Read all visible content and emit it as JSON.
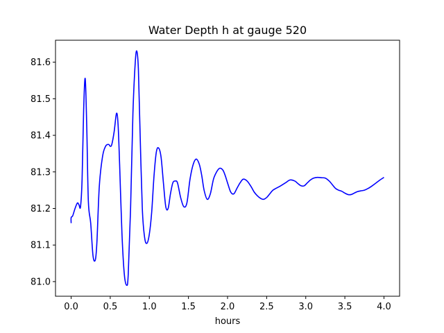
{
  "chart_data": {
    "type": "line",
    "title": "Water Depth h at gauge 520",
    "xlabel": "hours",
    "ylabel": "",
    "xlim": [
      -0.2,
      4.2
    ],
    "ylim": [
      80.96,
      81.66
    ],
    "grid": false,
    "legend": "none",
    "xticks": [
      0.0,
      0.5,
      1.0,
      1.5,
      2.0,
      2.5,
      3.0,
      3.5,
      4.0
    ],
    "xtick_labels": [
      "0.0",
      "0.5",
      "1.0",
      "1.5",
      "2.0",
      "2.5",
      "3.0",
      "3.5",
      "4.0"
    ],
    "yticks": [
      81.0,
      81.1,
      81.2,
      81.3,
      81.4,
      81.5,
      81.6
    ],
    "ytick_labels": [
      "81.0",
      "81.1",
      "81.2",
      "81.3",
      "81.4",
      "81.5",
      "81.6"
    ],
    "series": [
      {
        "color": "#0000ff",
        "x": [
          0.0,
          0.0,
          0.02,
          0.05,
          0.08,
          0.1,
          0.12,
          0.14,
          0.16,
          0.18,
          0.2,
          0.22,
          0.25,
          0.28,
          0.31,
          0.33,
          0.36,
          0.4,
          0.44,
          0.48,
          0.5,
          0.52,
          0.55,
          0.58,
          0.6,
          0.62,
          0.65,
          0.68,
          0.71,
          0.73,
          0.76,
          0.79,
          0.82,
          0.84,
          0.86,
          0.88,
          0.91,
          0.94,
          0.97,
          1.0,
          1.03,
          1.06,
          1.09,
          1.12,
          1.15,
          1.18,
          1.21,
          1.24,
          1.27,
          1.3,
          1.33,
          1.36,
          1.4,
          1.44,
          1.48,
          1.52,
          1.56,
          1.6,
          1.64,
          1.67,
          1.7,
          1.74,
          1.78,
          1.82,
          1.86,
          1.9,
          1.94,
          1.97,
          2.0,
          2.04,
          2.08,
          2.12,
          2.16,
          2.2,
          2.25,
          2.3,
          2.34,
          2.38,
          2.42,
          2.46,
          2.5,
          2.54,
          2.58,
          2.62,
          2.68,
          2.74,
          2.8,
          2.86,
          2.9,
          2.94,
          2.98,
          3.02,
          3.06,
          3.1,
          3.15,
          3.2,
          3.25,
          3.3,
          3.34,
          3.38,
          3.42,
          3.46,
          3.5,
          3.54,
          3.58,
          3.62,
          3.66,
          3.7,
          3.75,
          3.8,
          3.85,
          3.9,
          3.95,
          4.0
        ],
        "y": [
          81.16,
          81.175,
          81.18,
          81.2,
          81.215,
          81.21,
          81.205,
          81.28,
          81.47,
          81.555,
          81.42,
          81.22,
          81.16,
          81.07,
          81.06,
          81.11,
          81.26,
          81.34,
          81.37,
          81.375,
          81.37,
          81.375,
          81.41,
          81.46,
          81.43,
          81.32,
          81.13,
          81.02,
          80.99,
          81.02,
          81.2,
          81.46,
          81.6,
          81.63,
          81.58,
          81.42,
          81.2,
          81.12,
          81.105,
          81.13,
          81.19,
          81.29,
          81.355,
          81.365,
          81.34,
          81.27,
          81.205,
          81.2,
          81.24,
          81.27,
          81.275,
          81.27,
          81.23,
          81.205,
          81.215,
          81.28,
          81.32,
          81.335,
          81.32,
          81.29,
          81.25,
          81.225,
          81.24,
          81.28,
          81.3,
          81.31,
          81.305,
          81.29,
          81.27,
          81.245,
          81.24,
          81.255,
          81.27,
          81.28,
          81.275,
          81.26,
          81.245,
          81.235,
          81.228,
          81.225,
          81.23,
          81.24,
          81.25,
          81.255,
          81.262,
          81.27,
          81.278,
          81.275,
          81.268,
          81.262,
          81.262,
          81.27,
          81.278,
          81.283,
          81.285,
          81.284,
          81.283,
          81.275,
          81.265,
          81.255,
          81.25,
          81.247,
          81.242,
          81.238,
          81.238,
          81.242,
          81.246,
          81.248,
          81.25,
          81.255,
          81.262,
          81.27,
          81.278,
          81.285
        ]
      }
    ]
  }
}
